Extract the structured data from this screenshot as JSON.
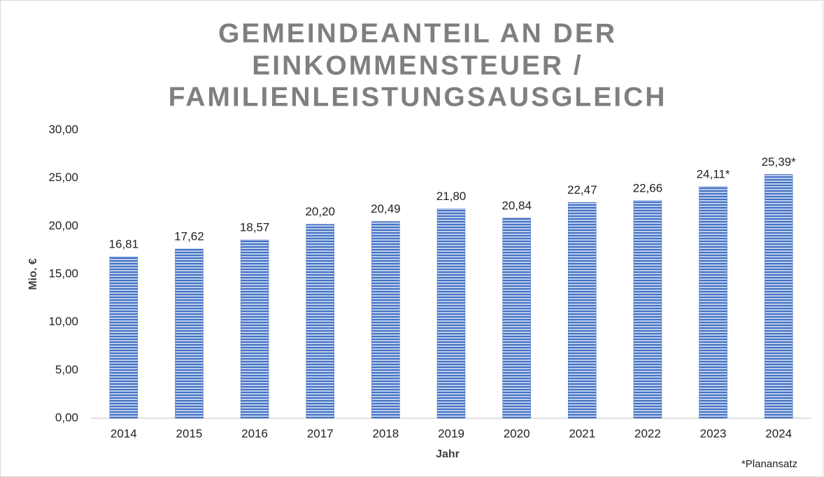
{
  "chart_data": {
    "type": "bar",
    "title_lines": [
      "GEMEINDEANTEIL AN DER",
      "EINKOMMENSTEUER /",
      "FAMILIENLEISTUNGSAUSGLEICH"
    ],
    "x_label": "Jahr",
    "y_label": "Mio. €",
    "annotation": "*Planansatz",
    "categories": [
      "2014",
      "2015",
      "2016",
      "2017",
      "2018",
      "2019",
      "2020",
      "2021",
      "2022",
      "2023",
      "2024"
    ],
    "values": [
      16.81,
      17.62,
      18.57,
      20.2,
      20.49,
      21.8,
      20.84,
      22.47,
      22.66,
      24.11,
      25.39
    ],
    "value_labels": [
      "16,81",
      "17,62",
      "18,57",
      "20,20",
      "20,49",
      "21,80",
      "20,84",
      "22,47",
      "22,66",
      "24,11*",
      "25,39*"
    ],
    "color": "#4472c4",
    "ylim": [
      0,
      30
    ],
    "yticks": [
      {
        "value": 0,
        "label": "0,00"
      },
      {
        "value": 5,
        "label": "5,00"
      },
      {
        "value": 10,
        "label": "10,00"
      },
      {
        "value": 15,
        "label": "15,00"
      },
      {
        "value": 20,
        "label": "20,00"
      },
      {
        "value": 25,
        "label": "25,00"
      },
      {
        "value": 30,
        "label": "30,00"
      }
    ],
    "grid": false
  }
}
